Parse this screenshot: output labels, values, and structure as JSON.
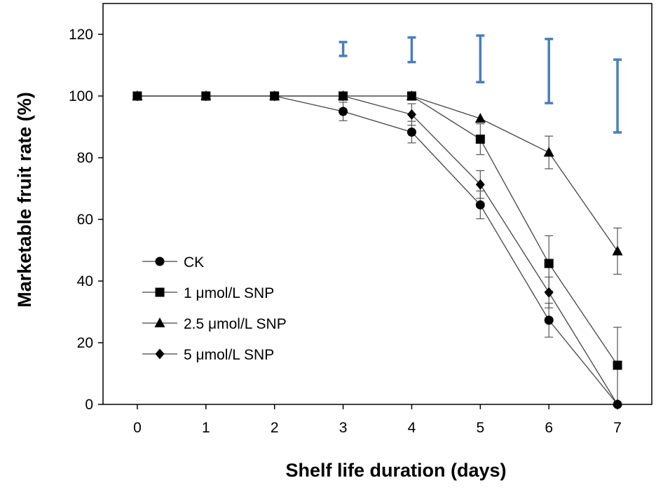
{
  "chart_data": {
    "type": "line",
    "title": "",
    "xlabel": "Shelf life duration (days)",
    "ylabel": "Marketable fruit rate (%)",
    "x": [
      0,
      1,
      2,
      3,
      4,
      5,
      6,
      7
    ],
    "xlim": [
      -0.5,
      7.5
    ],
    "ylim": [
      0,
      130
    ],
    "yticks": [
      0,
      20,
      40,
      60,
      80,
      100,
      120
    ],
    "xticks": [
      0,
      1,
      2,
      3,
      4,
      5,
      6,
      7
    ],
    "grid": false,
    "legend_position": "bottom-left",
    "series": [
      {
        "name": "CK",
        "marker": "circle",
        "values": [
          100,
          100,
          100,
          95,
          88.3,
          64.7,
          27.3,
          0
        ],
        "errors": [
          0,
          0,
          0,
          3,
          3.5,
          4.5,
          5.5,
          0
        ]
      },
      {
        "name": "1 μmol/L SNP",
        "marker": "square",
        "values": [
          100,
          100,
          100,
          100,
          100,
          86,
          45.7,
          12.7
        ],
        "errors": [
          0,
          0,
          0,
          0,
          0,
          5,
          9,
          12.3
        ]
      },
      {
        "name": "2.5 μmol/L SNP",
        "marker": "triangle",
        "values": [
          100,
          100,
          100,
          100,
          100,
          92.7,
          81.7,
          49.7
        ],
        "errors": [
          0,
          0,
          0,
          0,
          0,
          0,
          5.3,
          7.5
        ]
      },
      {
        "name": "5 μmol/L SNP",
        "marker": "diamond",
        "values": [
          100,
          100,
          100,
          100,
          94,
          71.3,
          36.3,
          0
        ],
        "errors": [
          0,
          0,
          0,
          0,
          3.5,
          4.5,
          5,
          0
        ]
      }
    ],
    "lsd_bars": {
      "color": "#4a7ebb",
      "x": [
        3,
        4,
        5,
        6,
        7
      ],
      "low": [
        113,
        111,
        104.5,
        97.7,
        88.2
      ],
      "high": [
        117.5,
        119,
        119.6,
        118.5,
        111.8
      ]
    }
  }
}
